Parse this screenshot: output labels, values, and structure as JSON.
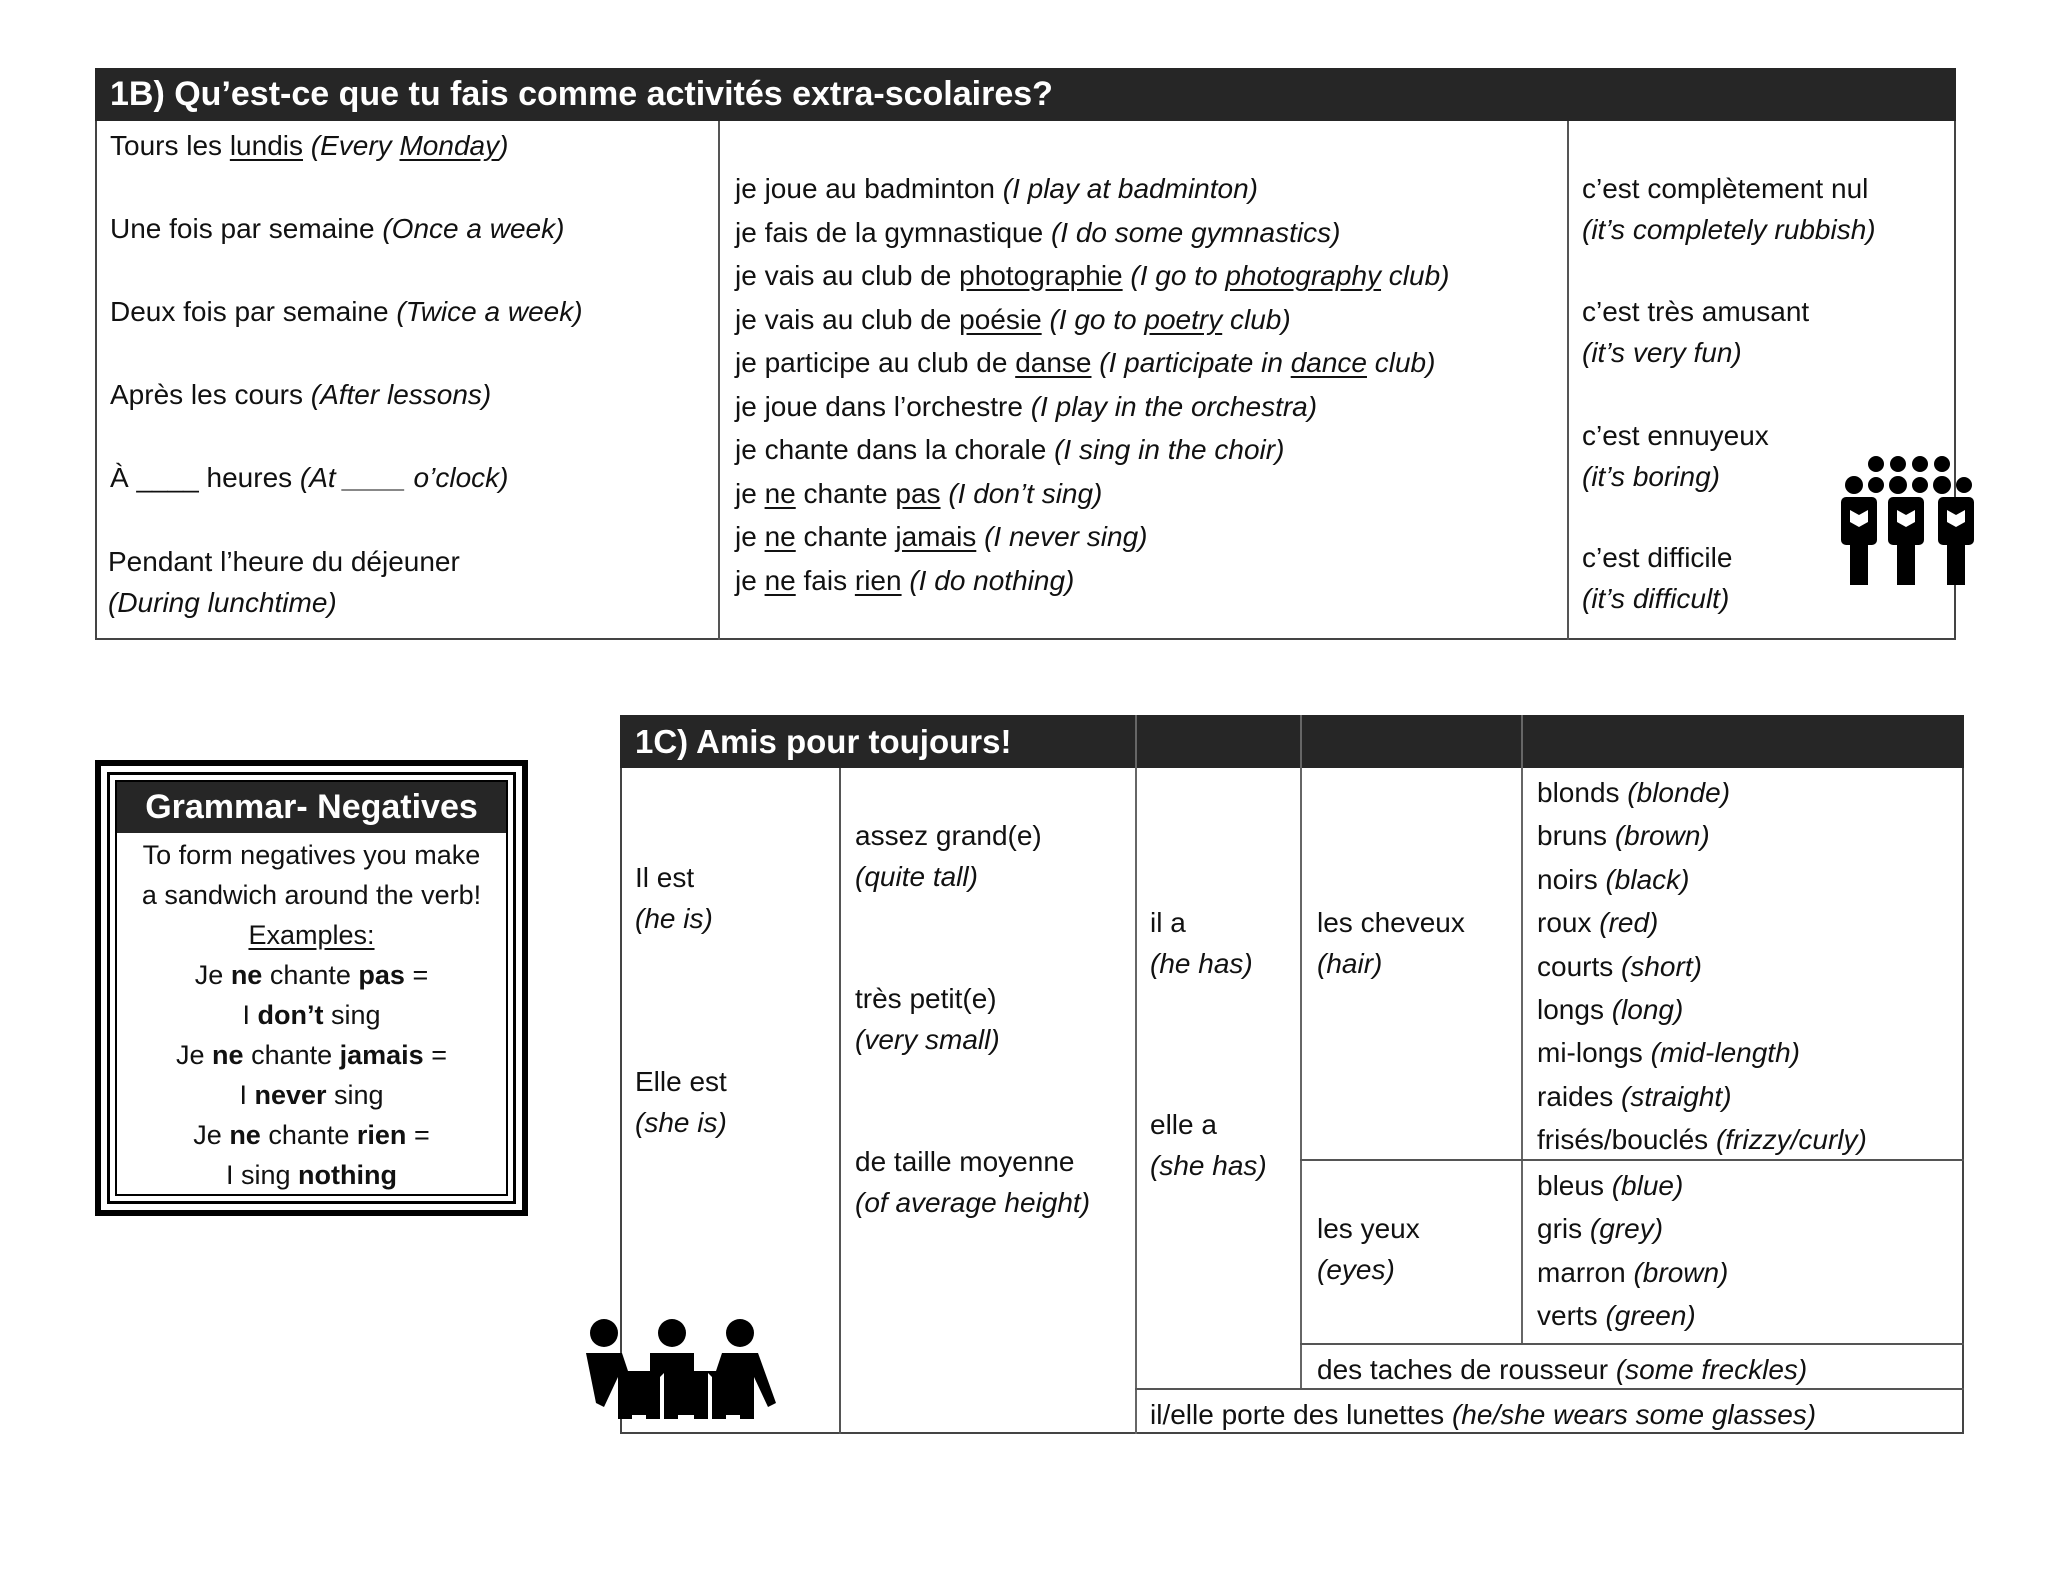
{
  "section_1b": {
    "title": "1B) Qu’est-ce que tu fais comme activités extra-scolaires?",
    "time_expressions": [
      [
        [
          "Tours les ",
          ""
        ],
        [
          "lundis",
          "u"
        ],
        [
          " (Every ",
          "i"
        ],
        [
          "Monday",
          "iu"
        ],
        [
          ")",
          "i"
        ]
      ],
      [
        [
          "Une fois par semaine ",
          ""
        ],
        [
          "(Once a week)",
          "i"
        ]
      ],
      [
        [
          "Deux fois par semaine ",
          ""
        ],
        [
          "(Twice a week)",
          "i"
        ]
      ],
      [
        [
          "Après les cours ",
          ""
        ],
        [
          "(After lessons)",
          "i"
        ]
      ],
      [
        [
          "À ____ heures ",
          ""
        ],
        [
          "(At ____ o’clock)",
          "i"
        ]
      ]
    ],
    "time_expressions_lunch": [
      [
        [
          "Pendant l’heure du déjeuner",
          ""
        ]
      ],
      [
        [
          "(During lunchtime)",
          "i"
        ]
      ]
    ],
    "activities": [
      [
        [
          "je joue au badminton ",
          ""
        ],
        [
          "(I play at badminton)",
          "i"
        ]
      ],
      [
        [
          "je fais de la gymnastique ",
          ""
        ],
        [
          "(I do some gymnastics)",
          "i"
        ]
      ],
      [
        [
          "je vais au club de ",
          ""
        ],
        [
          "photographie",
          "u"
        ],
        [
          " ",
          ""
        ],
        [
          "(I go to ",
          "i"
        ],
        [
          "photography",
          "iu"
        ],
        [
          " club)",
          "i"
        ]
      ],
      [
        [
          "je vais au club de ",
          ""
        ],
        [
          "poésie",
          "u"
        ],
        [
          " ",
          ""
        ],
        [
          "(I go to ",
          "i"
        ],
        [
          "poetry",
          "iu"
        ],
        [
          " club)",
          "i"
        ]
      ],
      [
        [
          "je participe au club de ",
          ""
        ],
        [
          "danse",
          "u"
        ],
        [
          " ",
          ""
        ],
        [
          "(I participate in ",
          "i"
        ],
        [
          "dance",
          "iu"
        ],
        [
          " club)",
          "i"
        ]
      ],
      [
        [
          "je joue dans l’orchestre ",
          ""
        ],
        [
          "(I play in the orchestra)",
          "i"
        ]
      ],
      [
        [
          "je chante dans la chorale ",
          ""
        ],
        [
          "(I sing in the choir)",
          "i"
        ]
      ],
      [
        [
          "je ",
          ""
        ],
        [
          "ne",
          "u"
        ],
        [
          " chante ",
          ""
        ],
        [
          "pas",
          "u"
        ],
        [
          " ",
          ""
        ],
        [
          "(I don’t sing)",
          "i"
        ]
      ],
      [
        [
          "je ",
          ""
        ],
        [
          "ne",
          "u"
        ],
        [
          " chante ",
          ""
        ],
        [
          "jamais",
          "u"
        ],
        [
          " ",
          ""
        ],
        [
          "(I never sing)",
          "i"
        ]
      ],
      [
        [
          "je ",
          ""
        ],
        [
          "ne",
          "u"
        ],
        [
          " fais ",
          ""
        ],
        [
          "rien",
          "u"
        ],
        [
          " ",
          ""
        ],
        [
          "(I do nothing)",
          "i"
        ]
      ]
    ],
    "opinions": [
      [
        [
          [
            "c’est complètement nul",
            ""
          ]
        ],
        [
          [
            "(it’s completely rubbish)",
            "i"
          ]
        ]
      ],
      [
        [
          [
            "c’est très amusant",
            ""
          ]
        ],
        [
          [
            "(it’s very fun)",
            "i"
          ]
        ]
      ],
      [
        [
          [
            "c’est ennuyeux",
            ""
          ]
        ],
        [
          [
            "(it’s boring)",
            "i"
          ]
        ]
      ],
      [
        [
          [
            "c’est difficile",
            ""
          ]
        ],
        [
          [
            "(it’s difficult)",
            "i"
          ]
        ]
      ]
    ],
    "icon": "choir-icon"
  },
  "grammar_box": {
    "title": "Grammar- Negatives",
    "lines": [
      [
        [
          "To form negatives you make",
          ""
        ]
      ],
      [
        [
          "a sandwich around the verb!",
          ""
        ]
      ],
      [
        [
          "Examples:",
          "u"
        ]
      ],
      [
        [
          "Je ",
          ""
        ],
        [
          "ne",
          "b"
        ],
        [
          " chante ",
          ""
        ],
        [
          "pas",
          "b"
        ],
        [
          " =",
          ""
        ]
      ],
      [
        [
          "I ",
          ""
        ],
        [
          "don’t",
          "b"
        ],
        [
          " sing",
          ""
        ]
      ],
      [
        [
          "Je ",
          ""
        ],
        [
          "ne",
          "b"
        ],
        [
          " chante ",
          ""
        ],
        [
          "jamais",
          "b"
        ],
        [
          " =",
          ""
        ]
      ],
      [
        [
          "I ",
          ""
        ],
        [
          "never",
          "b"
        ],
        [
          " sing",
          ""
        ]
      ],
      [
        [
          "Je ",
          ""
        ],
        [
          "ne",
          "b"
        ],
        [
          " chante ",
          ""
        ],
        [
          "rien",
          "b"
        ],
        [
          " =",
          ""
        ]
      ],
      [
        [
          "I sing ",
          ""
        ],
        [
          "nothing",
          "b"
        ]
      ]
    ]
  },
  "section_1c": {
    "title": "1C) Amis pour toujours!",
    "il_est": [
      [
        [
          "Il est",
          ""
        ]
      ],
      [
        [
          "(he is)",
          "i"
        ]
      ]
    ],
    "elle_est": [
      [
        [
          "Elle est",
          ""
        ]
      ],
      [
        [
          "(she is)",
          "i"
        ]
      ]
    ],
    "sizes": [
      [
        [
          [
            "assez grand(e)",
            ""
          ]
        ],
        [
          [
            "(quite tall)",
            "i"
          ]
        ]
      ],
      [
        [
          [
            "très petit(e)",
            ""
          ]
        ],
        [
          [
            "(very small)",
            "i"
          ]
        ]
      ],
      [
        [
          [
            "de taille moyenne",
            ""
          ]
        ],
        [
          [
            "(of average height)",
            "i"
          ]
        ]
      ]
    ],
    "il_a": [
      [
        [
          "il a",
          ""
        ]
      ],
      [
        [
          "(he has)",
          "i"
        ]
      ]
    ],
    "elle_a": [
      [
        [
          "elle a",
          ""
        ]
      ],
      [
        [
          "(she has)",
          "i"
        ]
      ]
    ],
    "hair_label": [
      [
        [
          "les cheveux",
          ""
        ]
      ],
      [
        [
          "(hair)",
          "i"
        ]
      ]
    ],
    "eyes_label": [
      [
        [
          "les yeux",
          ""
        ]
      ],
      [
        [
          "(eyes)",
          "i"
        ]
      ]
    ],
    "hair_colours": [
      [
        [
          "blonds ",
          ""
        ],
        [
          "(blonde)",
          "i"
        ]
      ],
      [
        [
          "bruns ",
          ""
        ],
        [
          "(brown)",
          "i"
        ]
      ],
      [
        [
          "noirs ",
          ""
        ],
        [
          "(black)",
          "i"
        ]
      ],
      [
        [
          "roux ",
          ""
        ],
        [
          "(red)",
          "i"
        ]
      ],
      [
        [
          "courts ",
          ""
        ],
        [
          "(short)",
          "i"
        ]
      ],
      [
        [
          "longs ",
          ""
        ],
        [
          "(long)",
          "i"
        ]
      ],
      [
        [
          "mi-longs ",
          ""
        ],
        [
          "(mid-length)",
          "i"
        ]
      ],
      [
        [
          "raides ",
          ""
        ],
        [
          "(straight)",
          "i"
        ]
      ],
      [
        [
          "frisés/bouclés ",
          ""
        ],
        [
          "(frizzy/curly)",
          "i"
        ]
      ]
    ],
    "eye_colours": [
      [
        [
          "bleus ",
          ""
        ],
        [
          "(blue)",
          "i"
        ]
      ],
      [
        [
          "gris ",
          ""
        ],
        [
          "(grey)",
          "i"
        ]
      ],
      [
        [
          "marron ",
          ""
        ],
        [
          "(brown)",
          "i"
        ]
      ],
      [
        [
          "verts ",
          ""
        ],
        [
          "(green)",
          "i"
        ]
      ]
    ],
    "freckles": [
      [
        [
          "des taches de rousseur ",
          ""
        ],
        [
          "(some freckles)",
          "i"
        ]
      ]
    ],
    "glasses": [
      [
        [
          "il/elle porte des lunettes ",
          ""
        ],
        [
          "(he/she wears some glasses)",
          "i"
        ]
      ]
    ],
    "icon": "friends-icon"
  }
}
